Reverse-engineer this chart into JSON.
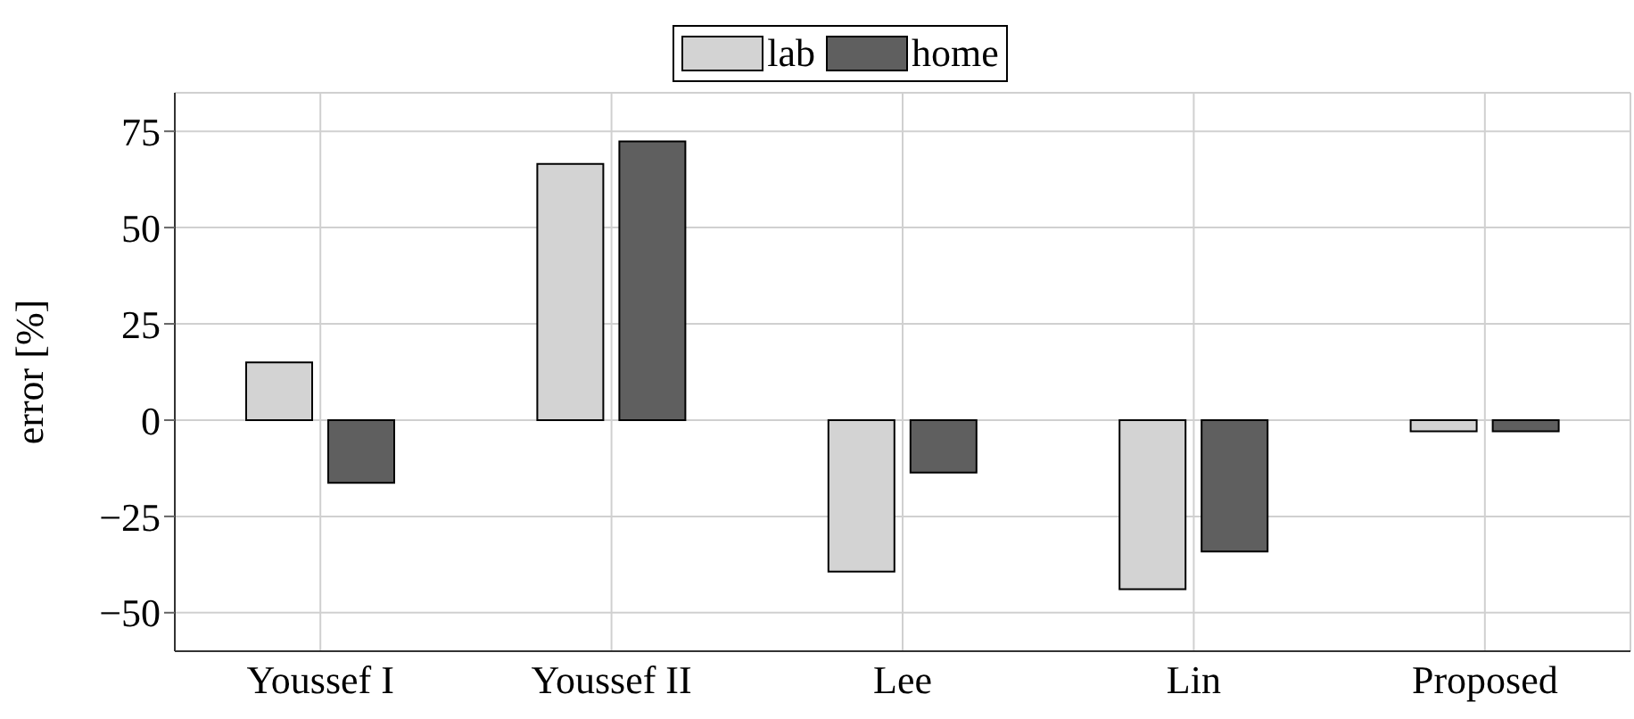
{
  "chart_data": {
    "type": "bar",
    "ylabel": "error [%]",
    "categories": [
      "Youssef I",
      "Youssef II",
      "Lee",
      "Lin",
      "Proposed"
    ],
    "series": [
      {
        "name": "lab",
        "color": "#d3d3d3",
        "values": [
          15,
          66.5,
          -39.3,
          -43.9,
          -2.9
        ]
      },
      {
        "name": "home",
        "color": "#5f5f5f",
        "values": [
          -16.3,
          72.4,
          -13.6,
          -34.1,
          -2.9
        ]
      }
    ],
    "ylim": [
      -60,
      85
    ],
    "yticks": [
      {
        "value": -50,
        "label": "−50"
      },
      {
        "value": -25,
        "label": "−25"
      },
      0,
      25,
      50,
      75
    ],
    "grid": true,
    "legend": "top"
  }
}
